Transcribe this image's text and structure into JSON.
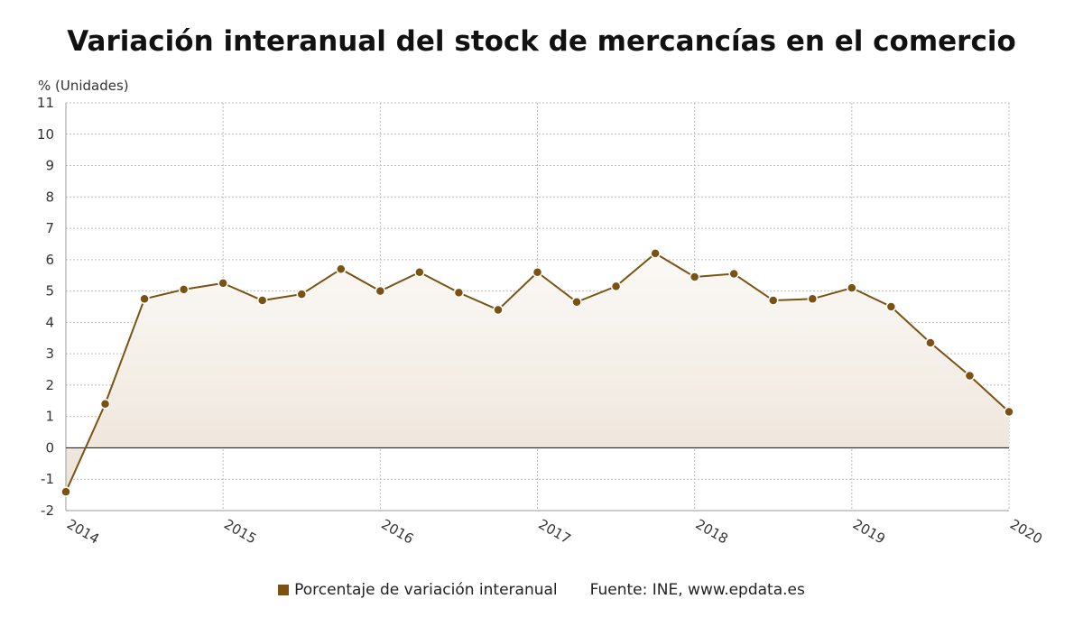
{
  "colors": {
    "series": "#7b5212",
    "area_top": "#fbf9f6",
    "area_bottom": "#ece3d8",
    "grid": "#bdbdbd",
    "zero_line": "#2b2b2b"
  },
  "legend": {
    "series_label": "Porcentaje de variación interanual",
    "source": "Fuente: INE, www.epdata.es"
  },
  "chart_data": {
    "type": "area",
    "title": "Variación interanual del stock de mercancías en el comercio",
    "ylabel": "% (Unidades)",
    "xlabel": "",
    "ylim": [
      -2,
      11
    ],
    "yticks": [
      -2,
      -1,
      0,
      1,
      2,
      3,
      4,
      5,
      6,
      7,
      8,
      9,
      10,
      11
    ],
    "xlim": [
      "2014-01",
      "2020-01"
    ],
    "xticks": [
      "2014",
      "2015",
      "2016",
      "2017",
      "2018",
      "2019",
      "2020"
    ],
    "grid": true,
    "legend_position": "bottom",
    "series": [
      {
        "name": "Porcentaje de variación interanual",
        "x": [
          "2014-01",
          "2014-04",
          "2014-07",
          "2014-10",
          "2015-01",
          "2015-04",
          "2015-07",
          "2015-10",
          "2016-01",
          "2016-04",
          "2016-07",
          "2016-10",
          "2017-01",
          "2017-04",
          "2017-07",
          "2017-10",
          "2018-01",
          "2018-04",
          "2018-07",
          "2018-10",
          "2019-01",
          "2019-04",
          "2019-07",
          "2019-10",
          "2020-01"
        ],
        "values": [
          -1.4,
          1.4,
          4.75,
          5.05,
          5.25,
          4.7,
          4.9,
          5.7,
          5.0,
          5.6,
          4.95,
          4.4,
          5.6,
          4.65,
          5.15,
          6.2,
          5.45,
          5.55,
          4.7,
          4.75,
          5.1,
          4.5,
          3.35,
          2.3,
          1.15
        ]
      }
    ]
  }
}
